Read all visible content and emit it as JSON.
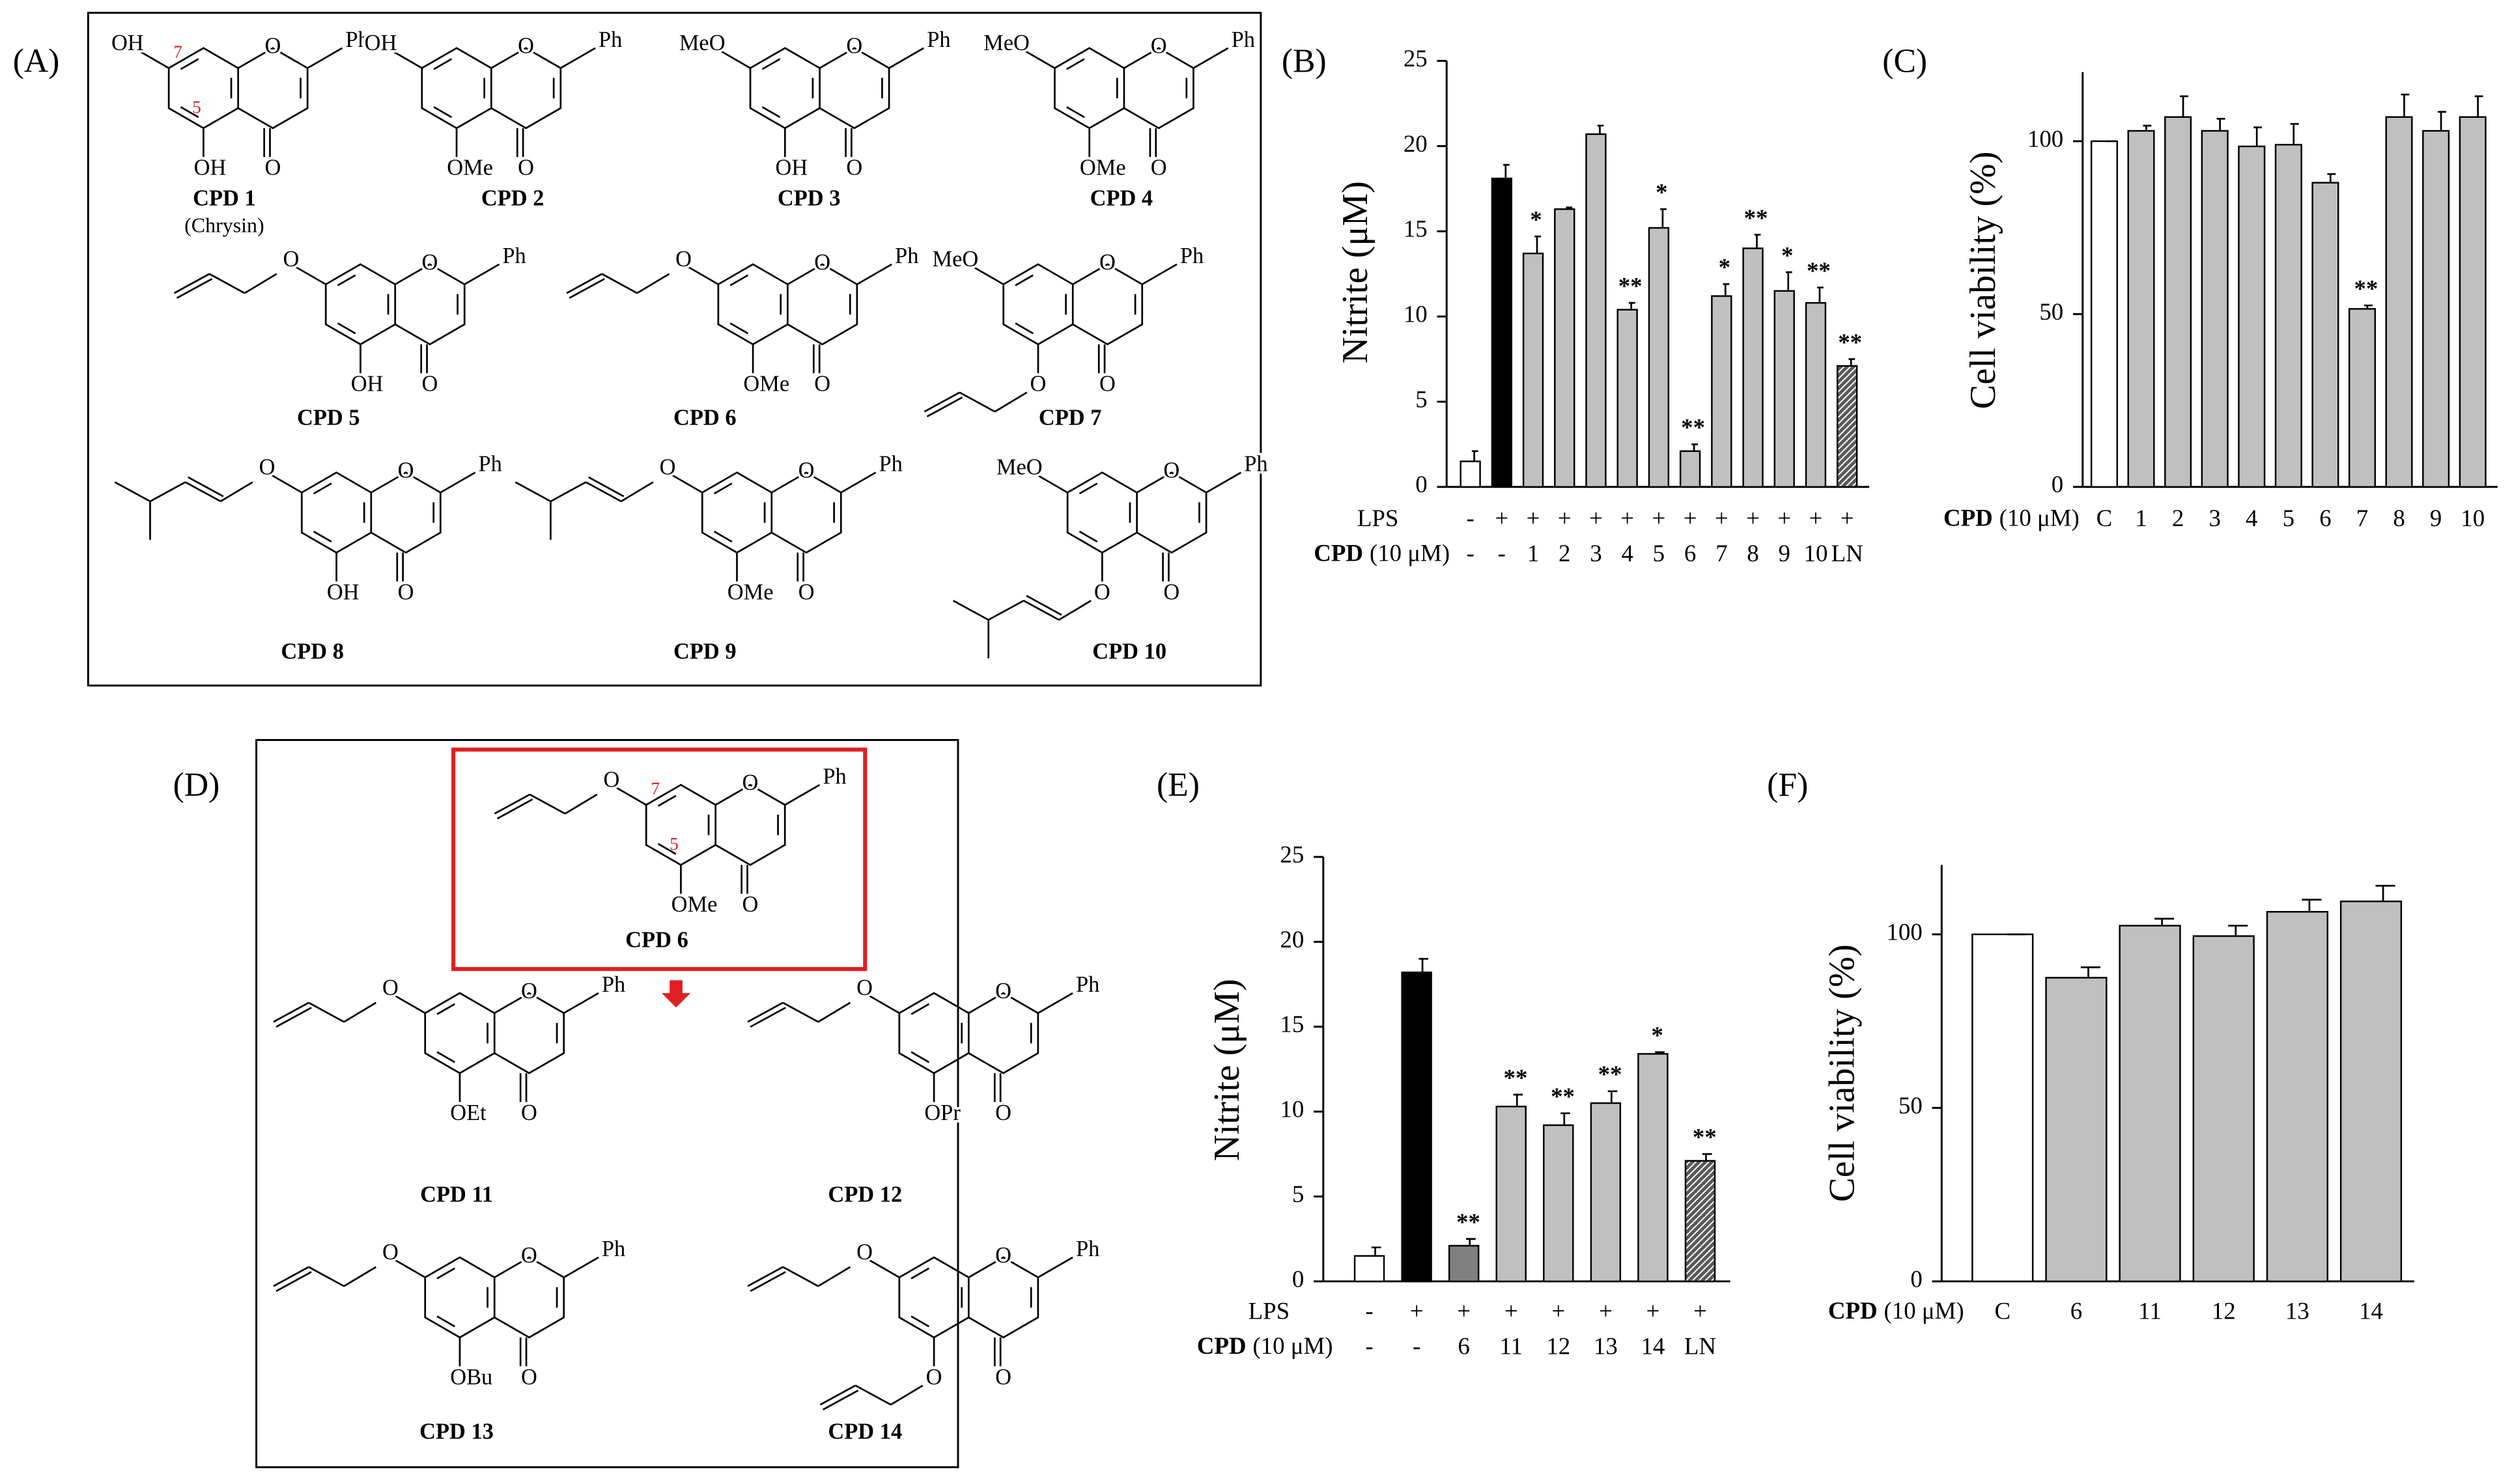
{
  "panel_a": {
    "label": "(A)",
    "structures": [
      {
        "label": "CPD 1",
        "note": "(Chrysin)",
        "r7": "OH",
        "r5": "OH",
        "o1": "O",
        "o4": "O",
        "ph": "Ph",
        "pos7": "7",
        "pos5": "5"
      },
      {
        "label": "CPD 2",
        "r7": "OH",
        "r5": "OMe",
        "o1": "O",
        "o4": "O",
        "ph": "Ph"
      },
      {
        "label": "CPD 3",
        "r7": "MeO",
        "r5": "OH",
        "o1": "O",
        "o4": "O",
        "ph": "Ph"
      },
      {
        "label": "CPD 4",
        "r7": "MeO",
        "r5": "OMe",
        "o1": "O",
        "o4": "O",
        "ph": "Ph"
      },
      {
        "label": "CPD 5",
        "r7": "O",
        "r5": "OH",
        "o1": "O",
        "o4": "O",
        "ph": "Ph"
      },
      {
        "label": "CPD 6",
        "r7": "O",
        "r5": "OMe",
        "o1": "O",
        "o4": "O",
        "ph": "Ph"
      },
      {
        "label": "CPD 7",
        "r7": "MeO",
        "r5": "O",
        "o1": "O",
        "o4": "O",
        "ph": "Ph"
      },
      {
        "label": "CPD 8",
        "r7": "O",
        "r5": "OH",
        "o1": "O",
        "o4": "O",
        "ph": "Ph"
      },
      {
        "label": "CPD 9",
        "r7": "O",
        "r5": "OMe",
        "o1": "O",
        "o4": "O",
        "ph": "Ph"
      },
      {
        "label": "CPD 10",
        "r7": "MeO",
        "r5": "O",
        "o1": "O",
        "o4": "O",
        "ph": "Ph"
      }
    ]
  },
  "panel_d": {
    "label": "(D)",
    "structures": [
      {
        "label": "CPD 6",
        "r7": "O",
        "r5": "OMe",
        "o1": "O",
        "o4": "O",
        "ph": "Ph",
        "pos7": "7",
        "pos5": "5"
      },
      {
        "label": "CPD 11",
        "r7": "O",
        "r5": "OEt",
        "o1": "O",
        "o4": "O",
        "ph": "Ph"
      },
      {
        "label": "CPD 12",
        "r7": "O",
        "r5": "OPr",
        "o1": "O",
        "o4": "O",
        "ph": "Ph"
      },
      {
        "label": "CPD 13",
        "r7": "O",
        "r5": "OBu",
        "o1": "O",
        "o4": "O",
        "ph": "Ph"
      },
      {
        "label": "CPD 14",
        "r7": "O",
        "r5": "O",
        "o1": "O",
        "o4": "O",
        "ph": "Ph"
      }
    ]
  },
  "chart_data": [
    {
      "type": "bar",
      "panel_label": "(B)",
      "ylabel": "Nitrite (μM)",
      "ylim": [
        0,
        25
      ],
      "yticks": [
        0,
        5,
        10,
        15,
        20,
        25
      ],
      "lps_label": "LPS",
      "lps": [
        "-",
        "+",
        "+",
        "+",
        "+",
        "+",
        "+",
        "+",
        "+",
        "+",
        "+",
        "+",
        "+"
      ],
      "category_label": "CPD",
      "category_unit": "(10 μM)",
      "categories": [
        "-",
        "-",
        "1",
        "2",
        "3",
        "4",
        "5",
        "6",
        "7",
        "8",
        "9",
        "10",
        "LN"
      ],
      "values": [
        1.5,
        18.1,
        13.7,
        16.3,
        20.7,
        10.4,
        15.2,
        2.1,
        11.2,
        14.0,
        11.5,
        10.8,
        7.1
      ],
      "errors": [
        0.6,
        0.8,
        1.0,
        0.1,
        0.5,
        0.4,
        1.1,
        0.4,
        0.7,
        0.8,
        1.1,
        0.9,
        0.4
      ],
      "significance": [
        null,
        null,
        "*",
        null,
        null,
        "**",
        "*",
        "**",
        "*",
        "**",
        "*",
        "**",
        "**"
      ],
      "colors": [
        "#ffffff",
        "#000000",
        "#c0c0c0",
        "#c0c0c0",
        "#c0c0c0",
        "#c0c0c0",
        "#c0c0c0",
        "#c0c0c0",
        "#c0c0c0",
        "#c0c0c0",
        "#c0c0c0",
        "#c0c0c0",
        "#595959"
      ],
      "patterns": [
        null,
        null,
        null,
        null,
        null,
        null,
        null,
        null,
        null,
        null,
        null,
        null,
        "hatch"
      ]
    },
    {
      "type": "bar",
      "panel_label": "(C)",
      "ylabel": "Cell viability (%)",
      "ylim": [
        0,
        120
      ],
      "yticks": [
        0,
        50,
        100
      ],
      "category_label": "CPD",
      "category_unit": "(10 μM)",
      "categories": [
        "C",
        "1",
        "2",
        "3",
        "4",
        "5",
        "6",
        "7",
        "8",
        "9",
        "10"
      ],
      "values": [
        100,
        103,
        107,
        103,
        98.5,
        99,
        88,
        51.5,
        107,
        103,
        107
      ],
      "errors": [
        0,
        1.5,
        6,
        3.5,
        5.5,
        6,
        2.5,
        1,
        6.5,
        5.5,
        6
      ],
      "significance": [
        null,
        null,
        null,
        null,
        null,
        null,
        null,
        "**",
        null,
        null,
        null
      ],
      "colors": [
        "#ffffff",
        "#c0c0c0",
        "#c0c0c0",
        "#c0c0c0",
        "#c0c0c0",
        "#c0c0c0",
        "#c0c0c0",
        "#c0c0c0",
        "#c0c0c0",
        "#c0c0c0",
        "#c0c0c0"
      ]
    },
    {
      "type": "bar",
      "panel_label": "(E)",
      "ylabel": "Nitrite (μM)",
      "ylim": [
        0,
        25
      ],
      "yticks": [
        0,
        5,
        10,
        15,
        20,
        25
      ],
      "lps_label": "LPS",
      "lps": [
        "-",
        "+",
        "+",
        "+",
        "+",
        "+",
        "+",
        "+"
      ],
      "category_label": "CPD",
      "category_unit": "(10 μM)",
      "categories": [
        "-",
        "-",
        "6",
        "11",
        "12",
        "13",
        "14",
        "LN"
      ],
      "values": [
        1.5,
        18.2,
        2.1,
        10.3,
        9.2,
        10.5,
        13.4,
        7.1
      ],
      "errors": [
        0.5,
        0.8,
        0.4,
        0.7,
        0.7,
        0.7,
        0.1,
        0.4
      ],
      "significance": [
        null,
        null,
        "**",
        "**",
        "**",
        "**",
        "*",
        "**"
      ],
      "colors": [
        "#ffffff",
        "#000000",
        "#808080",
        "#c0c0c0",
        "#c0c0c0",
        "#c0c0c0",
        "#c0c0c0",
        "#595959"
      ],
      "patterns": [
        null,
        null,
        null,
        null,
        null,
        null,
        null,
        "hatch"
      ]
    },
    {
      "type": "bar",
      "panel_label": "(F)",
      "ylabel": "Cell viability (%)",
      "ylim": [
        0,
        120
      ],
      "yticks": [
        0,
        50,
        100
      ],
      "category_label": "CPD",
      "category_unit": "(10 μM)",
      "categories": [
        "C",
        "6",
        "11",
        "12",
        "13",
        "14"
      ],
      "values": [
        100,
        87.5,
        102.5,
        99.5,
        106.5,
        109.5
      ],
      "errors": [
        0,
        3,
        2,
        3,
        3.5,
        4.5
      ],
      "significance": [
        null,
        null,
        null,
        null,
        null,
        null
      ],
      "colors": [
        "#ffffff",
        "#c0c0c0",
        "#c0c0c0",
        "#c0c0c0",
        "#c0c0c0",
        "#c0c0c0"
      ]
    }
  ]
}
